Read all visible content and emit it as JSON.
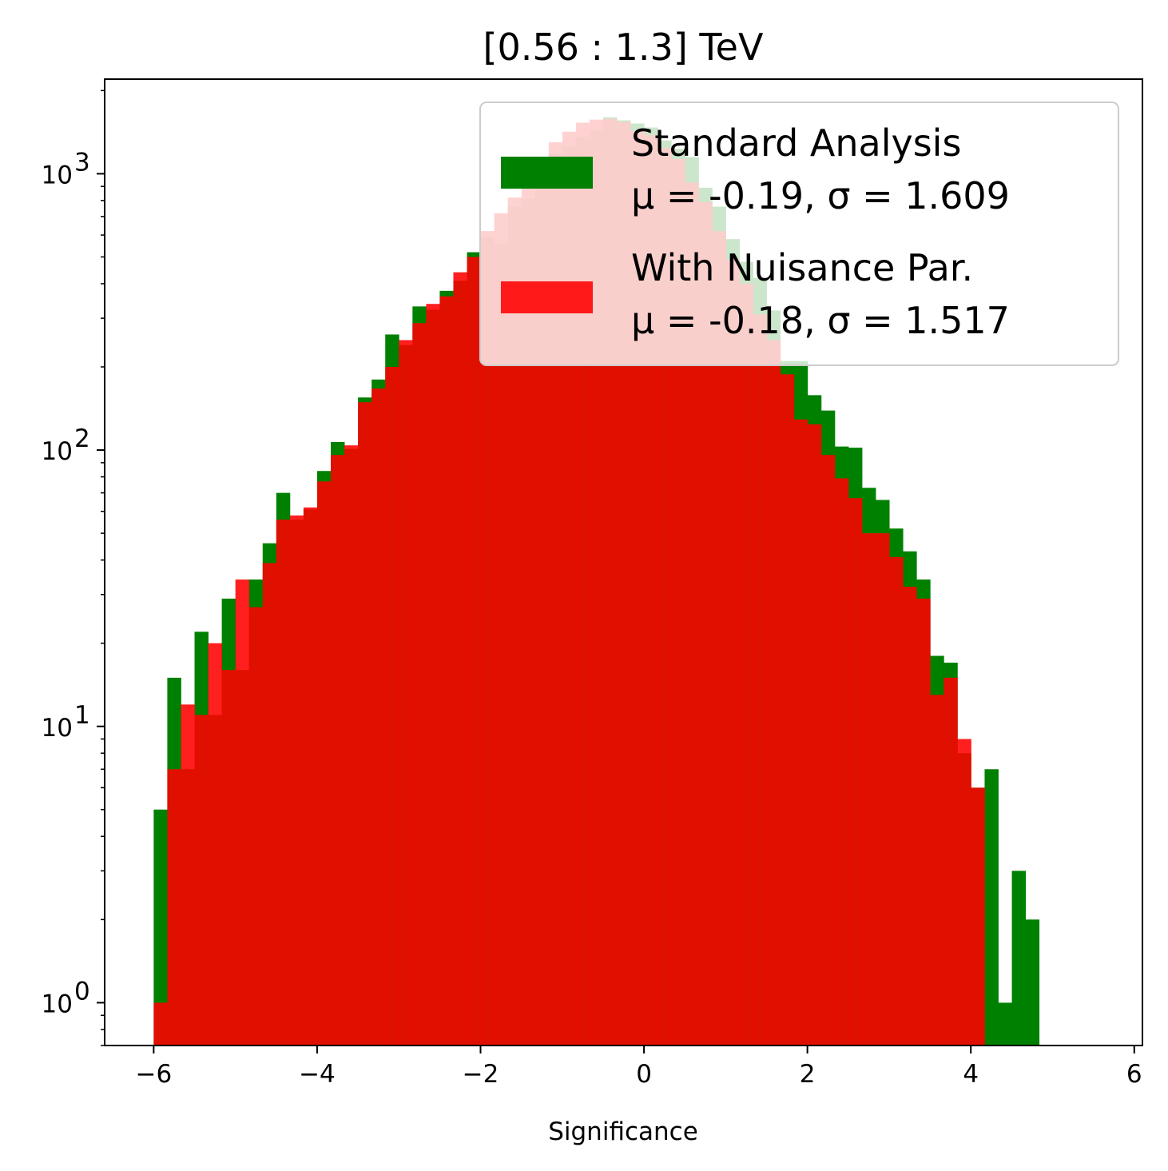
{
  "chart_data": {
    "type": "bar",
    "title": "[0.56 : 1.3] TeV",
    "xlabel": "Significance",
    "ylabel": "",
    "yscale": "log",
    "xlim": [
      -6.6,
      6.1
    ],
    "ylim": [
      0.7,
      2200
    ],
    "xticks": [
      -6,
      -4,
      -2,
      0,
      2,
      4,
      6
    ],
    "xtick_labels": [
      "−6",
      "−4",
      "−2",
      "0",
      "2",
      "4",
      "6"
    ],
    "yticks": [
      1,
      10,
      100,
      1000
    ],
    "ytick_labels": [
      {
        "base": "10",
        "exp": "0"
      },
      {
        "base": "10",
        "exp": "1"
      },
      {
        "base": "10",
        "exp": "2"
      },
      {
        "base": "10",
        "exp": "3"
      }
    ],
    "grid": false,
    "legend_position": "top-right",
    "bin_edges_start": -6.0,
    "bin_width": 0.1667,
    "series": [
      {
        "name": "Standard Analysis",
        "stats": " μ = -0.19, σ = 1.609",
        "color": "#008000",
        "alpha": 1.0,
        "values": [
          5,
          15,
          7,
          22,
          11,
          29,
          16,
          34,
          46,
          70,
          56,
          61,
          84,
          107,
          101,
          155,
          180,
          262,
          240,
          331,
          322,
          377,
          410,
          520,
          590,
          560,
          760,
          810,
          1020,
          1180,
          1260,
          1360,
          1440,
          1600,
          1560,
          1520,
          1470,
          1320,
          1230,
          1150,
          890,
          760,
          580,
          480,
          420,
          320,
          210,
          210,
          158,
          139,
          103,
          102,
          73,
          66,
          52,
          43,
          34,
          18,
          17,
          8,
          6,
          7,
          1,
          3,
          2
        ]
      },
      {
        "name": "With Nuisance Par.",
        "stats": " μ = -0.18, σ = 1.517",
        "color": "#ff0000",
        "alpha": 0.88,
        "values": [
          1,
          7,
          12,
          11,
          20,
          16,
          34,
          27,
          39,
          56,
          58,
          62,
          77,
          96,
          104,
          149,
          167,
          200,
          250,
          288,
          338,
          360,
          440,
          500,
          620,
          720,
          820,
          1000,
          1150,
          1300,
          1420,
          1530,
          1570,
          1580,
          1540,
          1430,
          1380,
          1240,
          1130,
          930,
          790,
          620,
          490,
          400,
          310,
          250,
          188,
          129,
          124,
          96,
          79,
          67,
          50,
          50,
          41,
          32,
          29,
          13,
          15,
          9,
          6,
          0,
          0,
          0,
          0
        ]
      }
    ]
  }
}
